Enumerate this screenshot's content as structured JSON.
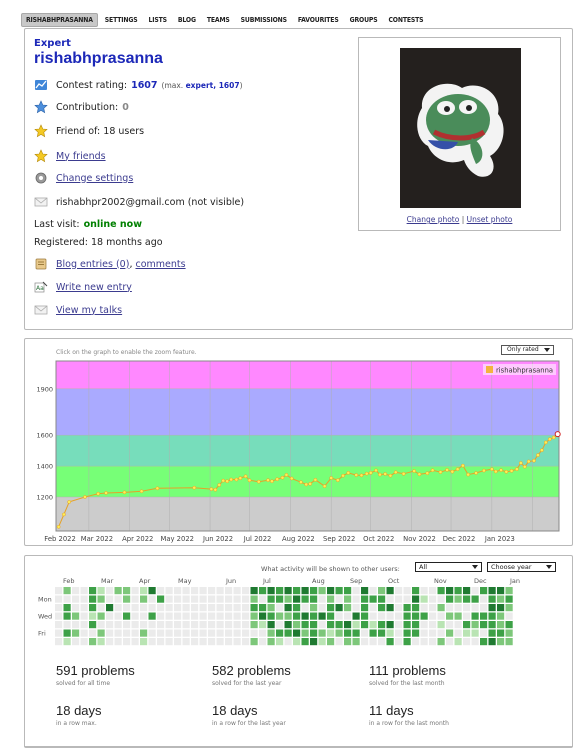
{
  "nav": {
    "tabs": [
      "RISHABHPRASANNA",
      "SETTINGS",
      "LISTS",
      "BLOG",
      "TEAMS",
      "SUBMISSIONS",
      "FAVOURITES",
      "GROUPS",
      "CONTESTS"
    ]
  },
  "profile": {
    "rank": "Expert",
    "handle": "rishabhprasanna",
    "contest_rating_label": "Contest rating:",
    "contest_rating_value": "1607",
    "max_prefix": "(max.",
    "max_rank": "expert, 1607",
    "max_suffix": ")",
    "contribution_label": "Contribution:",
    "contribution_value": "0",
    "friend_of": "Friend of: 18 users",
    "my_friends": "My friends",
    "change_settings": "Change settings",
    "email": "rishabhpr2002@gmail.com (not visible)",
    "last_visit_label": "Last visit:",
    "last_visit_value": "online now",
    "registered": "Registered: 18 months ago",
    "blog_entries": "Blog entries (0)",
    "blog_sep": ", ",
    "comments": "comments",
    "write_new_entry": "Write new entry",
    "view_my_talks": "View my talks",
    "change_photo": "Change photo",
    "photo_sep": " | ",
    "unset_photo": "Unset photo"
  },
  "rating_graph": {
    "hint": "Click on the graph to enable the zoom feature.",
    "filter": "Only rated"
  },
  "chart_data": {
    "type": "line",
    "series": [
      {
        "name": "rishabhprasanna",
        "color": "#f3b43d",
        "points": [
          [
            "2022-02-06",
            1007
          ],
          [
            "2022-02-10",
            1087
          ],
          [
            "2022-02-14",
            1168
          ],
          [
            "2022-02-26",
            1200
          ],
          [
            "2022-03-08",
            1221
          ],
          [
            "2022-03-14",
            1226
          ],
          [
            "2022-03-28",
            1230
          ],
          [
            "2022-04-10",
            1237
          ],
          [
            "2022-04-22",
            1256
          ],
          [
            "2022-05-20",
            1260
          ],
          [
            "2022-06-02",
            1251
          ],
          [
            "2022-06-05",
            1247
          ],
          [
            "2022-06-08",
            1278
          ],
          [
            "2022-06-11",
            1306
          ],
          [
            "2022-06-14",
            1302
          ],
          [
            "2022-06-17",
            1313
          ],
          [
            "2022-06-21",
            1313
          ],
          [
            "2022-06-24",
            1322
          ],
          [
            "2022-06-28",
            1334
          ],
          [
            "2022-07-01",
            1308
          ],
          [
            "2022-07-08",
            1299
          ],
          [
            "2022-07-15",
            1309
          ],
          [
            "2022-07-18",
            1302
          ],
          [
            "2022-07-22",
            1315
          ],
          [
            "2022-07-26",
            1325
          ],
          [
            "2022-07-29",
            1343
          ],
          [
            "2022-08-02",
            1320
          ],
          [
            "2022-08-09",
            1296
          ],
          [
            "2022-08-13",
            1281
          ],
          [
            "2022-08-16",
            1285
          ],
          [
            "2022-08-20",
            1311
          ],
          [
            "2022-08-27",
            1270
          ],
          [
            "2022-09-01",
            1323
          ],
          [
            "2022-09-06",
            1309
          ],
          [
            "2022-09-10",
            1338
          ],
          [
            "2022-09-14",
            1356
          ],
          [
            "2022-09-20",
            1342
          ],
          [
            "2022-09-24",
            1340
          ],
          [
            "2022-09-28",
            1351
          ],
          [
            "2022-10-01",
            1356
          ],
          [
            "2022-10-05",
            1372
          ],
          [
            "2022-10-08",
            1345
          ],
          [
            "2022-10-12",
            1349
          ],
          [
            "2022-10-16",
            1338
          ],
          [
            "2022-10-20",
            1360
          ],
          [
            "2022-10-26",
            1350
          ],
          [
            "2022-11-03",
            1368
          ],
          [
            "2022-11-07",
            1347
          ],
          [
            "2022-11-13",
            1354
          ],
          [
            "2022-11-17",
            1373
          ],
          [
            "2022-11-23",
            1361
          ],
          [
            "2022-11-28",
            1375
          ],
          [
            "2022-12-02",
            1364
          ],
          [
            "2022-12-06",
            1380
          ],
          [
            "2022-12-10",
            1403
          ],
          [
            "2022-12-14",
            1345
          ],
          [
            "2022-12-20",
            1355
          ],
          [
            "2022-12-26",
            1371
          ],
          [
            "2023-01-01",
            1380
          ],
          [
            "2023-01-04",
            1365
          ],
          [
            "2023-01-08",
            1374
          ],
          [
            "2023-01-12",
            1363
          ],
          [
            "2023-01-16",
            1369
          ],
          [
            "2023-01-20",
            1380
          ],
          [
            "2023-01-23",
            1420
          ],
          [
            "2023-01-26",
            1396
          ],
          [
            "2023-01-29",
            1430
          ],
          [
            "2023-02-02",
            1435
          ],
          [
            "2023-02-05",
            1471
          ],
          [
            "2023-02-08",
            1503
          ],
          [
            "2023-02-11",
            1553
          ],
          [
            "2023-02-14",
            1574
          ],
          [
            "2023-02-17",
            1585
          ],
          [
            "2023-02-20",
            1607
          ]
        ]
      }
    ],
    "x_ticks": [
      "Feb 2022",
      "Mar 2022",
      "Apr 2022",
      "May 2022",
      "Jun 2022",
      "Jul 2022",
      "Aug 2022",
      "Sep 2022",
      "Oct 2022",
      "Nov 2022",
      "Dec 2022",
      "Jan 2023"
    ],
    "y_ticks": [
      1200,
      1400,
      1600,
      1900
    ],
    "ylim": [
      980,
      2080
    ],
    "xlim": [
      "2022-02-04",
      "2023-02-21"
    ],
    "bands": [
      {
        "from": 980,
        "to": 1200,
        "color": "#cccccc"
      },
      {
        "from": 1200,
        "to": 1400,
        "color": "#77ff77"
      },
      {
        "from": 1400,
        "to": 1600,
        "color": "#77ddbb"
      },
      {
        "from": 1600,
        "to": 1900,
        "color": "#aaaaff"
      },
      {
        "from": 1900,
        "to": 2080,
        "color": "#ff88ff"
      }
    ],
    "legend_position": "top-right",
    "grid": true
  },
  "activity": {
    "visibility_label": "What activity will be shown to other users:",
    "visibility_value": "All",
    "year_value": "Choose year",
    "months": [
      "Feb",
      "Mar",
      "Apr",
      "May",
      "Jun",
      "Jul",
      "Aug",
      "Sep",
      "Oct",
      "Nov",
      "Dec",
      "Jan"
    ],
    "weekdays": [
      "Mon",
      "Wed",
      "Fri"
    ],
    "legend_colors": [
      "#ebebeb",
      "#b9e4b3",
      "#7dc77a",
      "#3da147",
      "#1f7a31"
    ],
    "weeks": [
      "0000000",
      "2033031",
      "0002020",
      "0000000",
      "3331302",
      "1202021",
      "0040000",
      "2000000",
      "2203000",
      "0000000",
      "1200021",
      "4003000",
      "0300000",
      "0000000",
      "0000000",
      "0000000",
      "0000000",
      "0000000",
      "0000000",
      "0000000",
      "0000000",
      "0000000",
      "0000000",
      "4232202",
      "3034100",
      "4323422",
      "3302031",
      "4242430",
      "3433241",
      "4304323",
      "3323334",
      "2004021",
      "4233312",
      "3040320",
      "3220432",
      "0004132",
      "4333300",
      "0300130",
      "2330330",
      "4040413",
      "0000000",
      "0033333",
      "3433330",
      "0103000",
      "0000000",
      "3020102",
      "4302020",
      "3202001",
      "4300310",
      "0303210",
      "3003303",
      "4343334",
      "4242232",
      "2320322"
    ],
    "stats": [
      {
        "num": "591 problems",
        "sub": "solved for all time"
      },
      {
        "num": "582 problems",
        "sub": "solved for the last year"
      },
      {
        "num": "111 problems",
        "sub": "solved for the last month"
      },
      {
        "num": "18 days",
        "sub": "in a row max."
      },
      {
        "num": "18 days",
        "sub": "in a row for the last year"
      },
      {
        "num": "11 days",
        "sub": "in a row for the last month"
      }
    ]
  }
}
